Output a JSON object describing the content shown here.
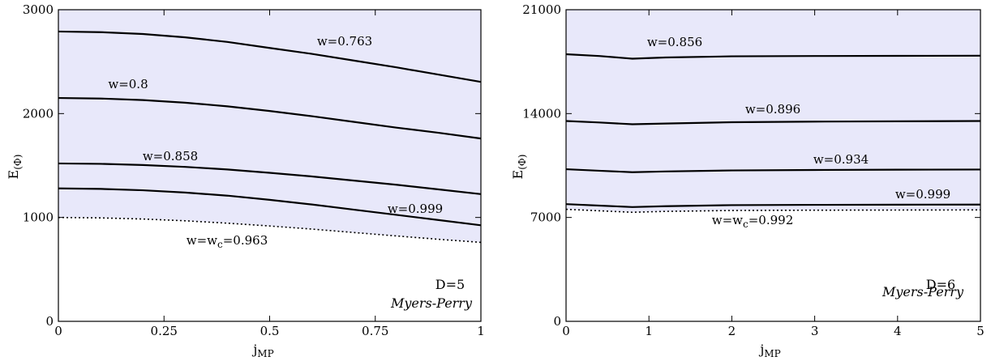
{
  "chart_data": [
    {
      "type": "line",
      "xlabel": "j",
      "xlabel_sub": "MP",
      "ylabel": "E",
      "ylabel_sub": "(Φ)",
      "xlim": [
        0,
        1
      ],
      "ylim": [
        0,
        3000
      ],
      "xticks": [
        0,
        0.25,
        0.5,
        0.75,
        1
      ],
      "xtick_labels": [
        "0",
        "0.25",
        "0.5",
        "0.75",
        "1"
      ],
      "yticks": [
        0,
        1000,
        2000,
        3000
      ],
      "ytick_labels": [
        "0",
        "1000",
        "2000",
        "3000"
      ],
      "shaded_region": {
        "color": "#e8e8fa"
      },
      "annotation_dimension": "D=5",
      "annotation_model": "Myers-Perry",
      "series": [
        {
          "label": "w=0.763",
          "style": "solid",
          "x": [
            0,
            0.1,
            0.2,
            0.3,
            0.4,
            0.5,
            0.6,
            0.7,
            0.8,
            0.9,
            1.0
          ],
          "values": [
            2790,
            2784,
            2766,
            2734,
            2690,
            2632,
            2575,
            2510,
            2445,
            2375,
            2305
          ]
        },
        {
          "label": "w=0.8",
          "style": "solid",
          "x": [
            0,
            0.1,
            0.2,
            0.3,
            0.4,
            0.5,
            0.6,
            0.7,
            0.8,
            0.9,
            1.0
          ],
          "values": [
            2150,
            2145,
            2130,
            2105,
            2070,
            2025,
            1975,
            1920,
            1865,
            1815,
            1760
          ]
        },
        {
          "label": "w=0.858",
          "style": "solid",
          "x": [
            0,
            0.1,
            0.2,
            0.3,
            0.4,
            0.5,
            0.6,
            0.7,
            0.8,
            0.9,
            1.0
          ],
          "values": [
            1520,
            1516,
            1505,
            1487,
            1462,
            1430,
            1395,
            1355,
            1315,
            1270,
            1225
          ]
        },
        {
          "label": "w=0.999",
          "style": "solid",
          "x": [
            0,
            0.1,
            0.2,
            0.3,
            0.4,
            0.5,
            0.6,
            0.7,
            0.8,
            0.9,
            1.0
          ],
          "values": [
            1280,
            1275,
            1262,
            1240,
            1210,
            1170,
            1125,
            1075,
            1025,
            975,
            925
          ]
        },
        {
          "label": "w=w",
          "label_sub": "c",
          "label_suffix": "=0.963",
          "style": "dotted",
          "x": [
            0,
            0.1,
            0.2,
            0.3,
            0.4,
            0.5,
            0.6,
            0.7,
            0.8,
            0.9,
            1.0
          ],
          "values": [
            1000,
            996,
            985,
            968,
            945,
            918,
            888,
            855,
            822,
            790,
            760
          ]
        }
      ]
    },
    {
      "type": "line",
      "xlabel": "j",
      "xlabel_sub": "MP",
      "ylabel": "E",
      "ylabel_sub": "(Φ)",
      "xlim": [
        0,
        5
      ],
      "ylim": [
        0,
        21000
      ],
      "xticks": [
        0,
        1,
        2,
        3,
        4,
        5
      ],
      "xtick_labels": [
        "0",
        "1",
        "2",
        "3",
        "4",
        "5"
      ],
      "yticks": [
        0,
        7000,
        14000,
        21000
      ],
      "ytick_labels": [
        "0",
        "7000",
        "14000",
        "21000"
      ],
      "shaded_region": {
        "color": "#e8e8fa"
      },
      "annotation_dimension": "D=6",
      "annotation_model": "Myers-Perry",
      "series": [
        {
          "label": "w=0.856",
          "style": "solid",
          "x": [
            0,
            0.4,
            0.8,
            1.2,
            2,
            3,
            4,
            5
          ],
          "values": [
            18000,
            17880,
            17700,
            17780,
            17860,
            17880,
            17890,
            17900
          ]
        },
        {
          "label": "w=0.896",
          "style": "solid",
          "x": [
            0,
            0.4,
            0.8,
            1.2,
            2,
            3,
            4,
            5
          ],
          "values": [
            13500,
            13400,
            13280,
            13330,
            13420,
            13460,
            13480,
            13500
          ]
        },
        {
          "label": "w=0.934",
          "style": "solid",
          "x": [
            0,
            0.4,
            0.8,
            1.2,
            2,
            3,
            4,
            5
          ],
          "values": [
            10250,
            10150,
            10050,
            10100,
            10170,
            10200,
            10220,
            10230
          ]
        },
        {
          "label": "w=0.999",
          "style": "solid",
          "x": [
            0,
            0.4,
            0.8,
            1.2,
            2,
            3,
            4,
            5
          ],
          "values": [
            7900,
            7800,
            7700,
            7760,
            7830,
            7850,
            7860,
            7870
          ]
        },
        {
          "label": "w=w",
          "label_sub": "c",
          "label_suffix": "=0.992",
          "style": "dotted",
          "x": [
            0,
            0.4,
            0.8,
            1.2,
            2,
            3,
            4,
            5
          ],
          "values": [
            7550,
            7450,
            7350,
            7410,
            7470,
            7490,
            7500,
            7510
          ]
        }
      ]
    }
  ]
}
